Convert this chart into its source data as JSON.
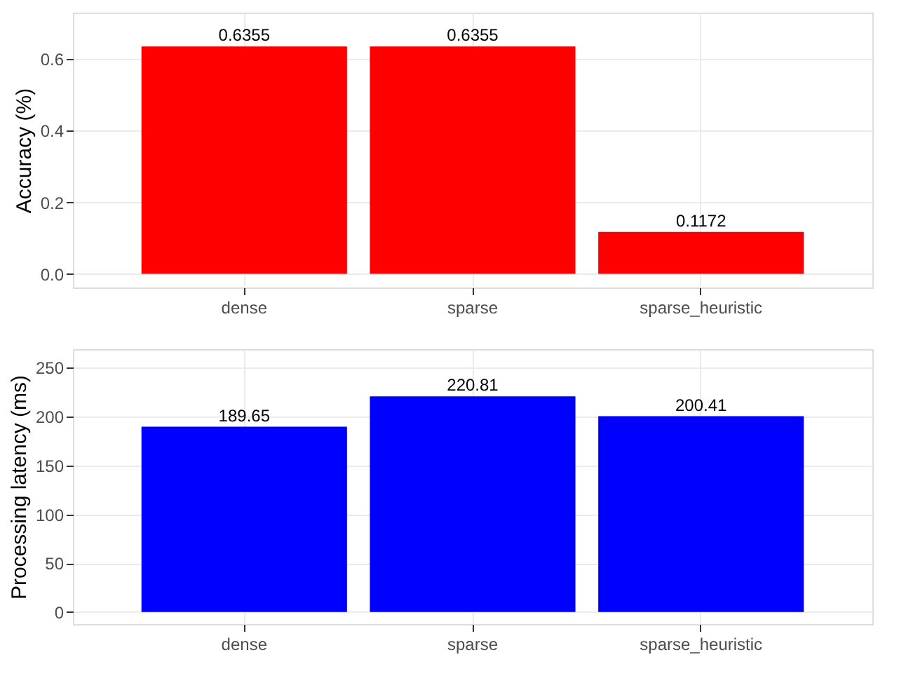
{
  "chart_data": [
    {
      "type": "bar",
      "ylabel": "Accuracy (%)",
      "categories": [
        "dense",
        "sparse",
        "sparse_heuristic"
      ],
      "values": [
        0.6355,
        0.6355,
        0.1172
      ],
      "color": "#ff0000",
      "ylim": [
        -0.038,
        0.73
      ],
      "yticks": [
        {
          "value": 0,
          "label": "0.0"
        },
        {
          "value": 0.2,
          "label": "0.2"
        },
        {
          "value": 0.4,
          "label": "0.4"
        },
        {
          "value": 0.6,
          "label": "0.6"
        }
      ],
      "grid": true,
      "data_labels": true
    },
    {
      "type": "bar",
      "ylabel": "Processing latency (ms)",
      "categories": [
        "dense",
        "sparse",
        "sparse_heuristic"
      ],
      "values": [
        189.65,
        220.81,
        200.41
      ],
      "color": "#0000ff",
      "ylim": [
        -12.3,
        269
      ],
      "yticks": [
        0,
        50,
        100,
        150,
        200,
        250
      ],
      "grid": true,
      "data_labels": true
    }
  ]
}
